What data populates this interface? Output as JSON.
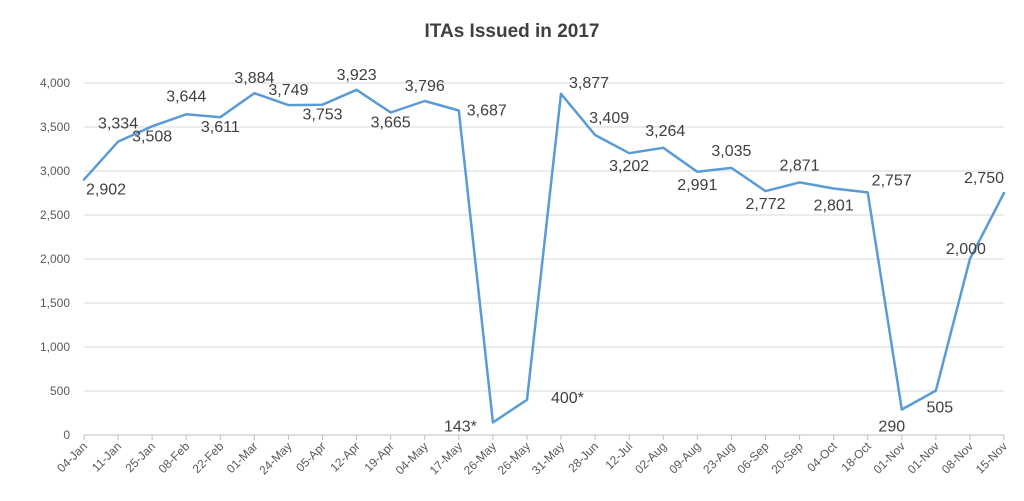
{
  "chart_data": {
    "type": "line",
    "title": "ITAs Issued in 2017",
    "xlabel": "",
    "ylabel": "",
    "ylim": [
      0,
      4000
    ],
    "yticks": [
      0,
      500,
      1000,
      1500,
      2000,
      2500,
      3000,
      3500,
      4000
    ],
    "ytick_labels": [
      "0",
      "500",
      "1,000",
      "1,500",
      "2,000",
      "2,500",
      "3,000",
      "3,500",
      "4,000"
    ],
    "grid": true,
    "legend": "none",
    "series_color": "#5B9BD5",
    "categories": [
      "04-Jan",
      "11-Jan",
      "25-Jan",
      "08-Feb",
      "22-Feb",
      "01-Mar",
      "24-May",
      "05-Apr",
      "12-Apr",
      "19-Apr",
      "04-May",
      "17-May",
      "26-May",
      "26-May",
      "31-May",
      "28-Jun",
      "12-Jul",
      "02-Aug",
      "09-Aug",
      "23-Aug",
      "06-Sep",
      "20-Sep",
      "04-Oct",
      "18-Oct",
      "01-Nov",
      "01-Nov",
      "08-Nov",
      "15-Nov"
    ],
    "series": [
      {
        "values": [
          2902,
          3334,
          3508,
          3644,
          3611,
          3884,
          3749,
          3753,
          3923,
          3665,
          3796,
          3687,
          143,
          400,
          3877,
          3409,
          3202,
          3264,
          2991,
          3035,
          2772,
          2871,
          2801,
          2757,
          290,
          505,
          2000,
          2750
        ],
        "data_labels": [
          "2,902",
          "3,334",
          "3,508",
          "3,644",
          "3,611",
          "3,884",
          "3,749",
          "3,753",
          "3,923",
          "3,665",
          "3,796",
          "3,687",
          "143*",
          "400*",
          "3,877",
          "3,409",
          "3,202",
          "3,264",
          "2,991",
          "3,035",
          "2,772",
          "2,871",
          "2,801",
          "2,757",
          "290",
          "505",
          "2,000",
          "2,750"
        ]
      }
    ]
  }
}
